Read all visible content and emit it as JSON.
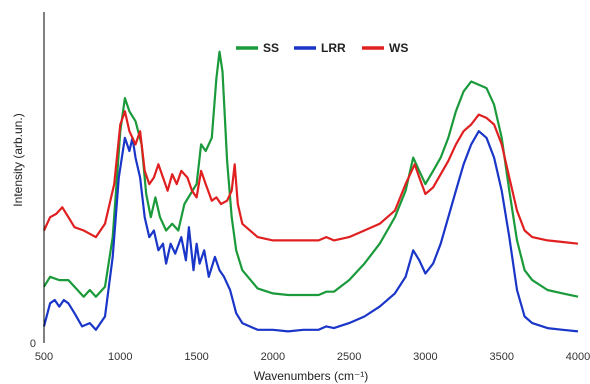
{
  "chart_data": {
    "type": "line",
    "title": "",
    "xlabel": "Wavenumbers (cm⁻¹)",
    "ylabel": "Intensity (arb.un.)",
    "xlim": [
      500,
      4000
    ],
    "ylim": [
      0,
      1
    ],
    "x_ticks": [
      "500",
      "1000",
      "1500",
      "2000",
      "2500",
      "3000",
      "3500",
      "4000"
    ],
    "y_ticks": [
      "0"
    ],
    "grid": false,
    "legend_position": "top-center",
    "series": [
      {
        "name": "SS",
        "color": "#1a9a3a",
        "points": [
          [
            500,
            0.17
          ],
          [
            540,
            0.2
          ],
          [
            600,
            0.19
          ],
          [
            660,
            0.19
          ],
          [
            700,
            0.17
          ],
          [
            760,
            0.14
          ],
          [
            800,
            0.16
          ],
          [
            840,
            0.14
          ],
          [
            900,
            0.17
          ],
          [
            950,
            0.32
          ],
          [
            1000,
            0.64
          ],
          [
            1030,
            0.74
          ],
          [
            1060,
            0.7
          ],
          [
            1100,
            0.67
          ],
          [
            1140,
            0.6
          ],
          [
            1170,
            0.45
          ],
          [
            1200,
            0.38
          ],
          [
            1230,
            0.44
          ],
          [
            1260,
            0.38
          ],
          [
            1300,
            0.34
          ],
          [
            1340,
            0.36
          ],
          [
            1380,
            0.34
          ],
          [
            1420,
            0.42
          ],
          [
            1460,
            0.45
          ],
          [
            1500,
            0.48
          ],
          [
            1530,
            0.6
          ],
          [
            1560,
            0.58
          ],
          [
            1600,
            0.62
          ],
          [
            1630,
            0.8
          ],
          [
            1650,
            0.88
          ],
          [
            1670,
            0.82
          ],
          [
            1700,
            0.55
          ],
          [
            1730,
            0.38
          ],
          [
            1760,
            0.28
          ],
          [
            1800,
            0.22
          ],
          [
            1900,
            0.165
          ],
          [
            2000,
            0.15
          ],
          [
            2100,
            0.145
          ],
          [
            2200,
            0.145
          ],
          [
            2300,
            0.145
          ],
          [
            2350,
            0.155
          ],
          [
            2400,
            0.155
          ],
          [
            2500,
            0.19
          ],
          [
            2600,
            0.24
          ],
          [
            2700,
            0.3
          ],
          [
            2800,
            0.38
          ],
          [
            2870,
            0.46
          ],
          [
            2920,
            0.56
          ],
          [
            2960,
            0.52
          ],
          [
            3000,
            0.48
          ],
          [
            3050,
            0.52
          ],
          [
            3100,
            0.56
          ],
          [
            3150,
            0.62
          ],
          [
            3200,
            0.7
          ],
          [
            3250,
            0.76
          ],
          [
            3300,
            0.79
          ],
          [
            3350,
            0.78
          ],
          [
            3400,
            0.77
          ],
          [
            3450,
            0.72
          ],
          [
            3500,
            0.62
          ],
          [
            3550,
            0.46
          ],
          [
            3600,
            0.31
          ],
          [
            3650,
            0.22
          ],
          [
            3700,
            0.19
          ],
          [
            3800,
            0.16
          ],
          [
            3900,
            0.15
          ],
          [
            4000,
            0.14
          ]
        ]
      },
      {
        "name": "LRR",
        "color": "#1a36c8",
        "points": [
          [
            500,
            0.05
          ],
          [
            540,
            0.12
          ],
          [
            570,
            0.13
          ],
          [
            600,
            0.11
          ],
          [
            630,
            0.13
          ],
          [
            660,
            0.12
          ],
          [
            700,
            0.09
          ],
          [
            750,
            0.05
          ],
          [
            800,
            0.06
          ],
          [
            840,
            0.04
          ],
          [
            900,
            0.08
          ],
          [
            950,
            0.26
          ],
          [
            990,
            0.5
          ],
          [
            1030,
            0.62
          ],
          [
            1060,
            0.58
          ],
          [
            1080,
            0.62
          ],
          [
            1100,
            0.56
          ],
          [
            1130,
            0.5
          ],
          [
            1160,
            0.38
          ],
          [
            1190,
            0.32
          ],
          [
            1220,
            0.34
          ],
          [
            1250,
            0.28
          ],
          [
            1280,
            0.3
          ],
          [
            1300,
            0.24
          ],
          [
            1330,
            0.3
          ],
          [
            1360,
            0.27
          ],
          [
            1400,
            0.32
          ],
          [
            1430,
            0.25
          ],
          [
            1450,
            0.35
          ],
          [
            1480,
            0.22
          ],
          [
            1500,
            0.3
          ],
          [
            1520,
            0.24
          ],
          [
            1550,
            0.28
          ],
          [
            1580,
            0.2
          ],
          [
            1620,
            0.26
          ],
          [
            1650,
            0.22
          ],
          [
            1680,
            0.2
          ],
          [
            1720,
            0.16
          ],
          [
            1760,
            0.09
          ],
          [
            1800,
            0.06
          ],
          [
            1900,
            0.04
          ],
          [
            2000,
            0.04
          ],
          [
            2100,
            0.035
          ],
          [
            2200,
            0.04
          ],
          [
            2300,
            0.04
          ],
          [
            2350,
            0.05
          ],
          [
            2400,
            0.045
          ],
          [
            2500,
            0.06
          ],
          [
            2600,
            0.08
          ],
          [
            2700,
            0.11
          ],
          [
            2800,
            0.15
          ],
          [
            2870,
            0.2
          ],
          [
            2920,
            0.28
          ],
          [
            2960,
            0.25
          ],
          [
            3000,
            0.21
          ],
          [
            3050,
            0.24
          ],
          [
            3100,
            0.3
          ],
          [
            3150,
            0.38
          ],
          [
            3200,
            0.46
          ],
          [
            3250,
            0.54
          ],
          [
            3300,
            0.6
          ],
          [
            3350,
            0.64
          ],
          [
            3400,
            0.62
          ],
          [
            3450,
            0.56
          ],
          [
            3500,
            0.46
          ],
          [
            3550,
            0.32
          ],
          [
            3600,
            0.16
          ],
          [
            3650,
            0.08
          ],
          [
            3700,
            0.06
          ],
          [
            3800,
            0.045
          ],
          [
            3900,
            0.04
          ],
          [
            4000,
            0.035
          ]
        ]
      },
      {
        "name": "WS",
        "color": "#e02020",
        "points": [
          [
            500,
            0.34
          ],
          [
            540,
            0.38
          ],
          [
            580,
            0.39
          ],
          [
            620,
            0.41
          ],
          [
            660,
            0.38
          ],
          [
            700,
            0.35
          ],
          [
            760,
            0.34
          ],
          [
            800,
            0.33
          ],
          [
            840,
            0.32
          ],
          [
            900,
            0.36
          ],
          [
            960,
            0.48
          ],
          [
            1000,
            0.66
          ],
          [
            1030,
            0.7
          ],
          [
            1060,
            0.64
          ],
          [
            1100,
            0.6
          ],
          [
            1130,
            0.64
          ],
          [
            1160,
            0.52
          ],
          [
            1190,
            0.48
          ],
          [
            1220,
            0.5
          ],
          [
            1250,
            0.54
          ],
          [
            1280,
            0.5
          ],
          [
            1310,
            0.46
          ],
          [
            1340,
            0.51
          ],
          [
            1370,
            0.48
          ],
          [
            1400,
            0.52
          ],
          [
            1440,
            0.5
          ],
          [
            1470,
            0.46
          ],
          [
            1500,
            0.44
          ],
          [
            1530,
            0.52
          ],
          [
            1560,
            0.48
          ],
          [
            1600,
            0.43
          ],
          [
            1630,
            0.44
          ],
          [
            1660,
            0.42
          ],
          [
            1700,
            0.43
          ],
          [
            1730,
            0.46
          ],
          [
            1750,
            0.54
          ],
          [
            1770,
            0.42
          ],
          [
            1800,
            0.36
          ],
          [
            1900,
            0.32
          ],
          [
            2000,
            0.31
          ],
          [
            2100,
            0.31
          ],
          [
            2200,
            0.31
          ],
          [
            2300,
            0.31
          ],
          [
            2350,
            0.32
          ],
          [
            2400,
            0.31
          ],
          [
            2500,
            0.32
          ],
          [
            2600,
            0.34
          ],
          [
            2700,
            0.36
          ],
          [
            2800,
            0.4
          ],
          [
            2870,
            0.48
          ],
          [
            2930,
            0.54
          ],
          [
            2960,
            0.5
          ],
          [
            3000,
            0.45
          ],
          [
            3050,
            0.47
          ],
          [
            3100,
            0.51
          ],
          [
            3150,
            0.55
          ],
          [
            3200,
            0.6
          ],
          [
            3250,
            0.64
          ],
          [
            3300,
            0.66
          ],
          [
            3350,
            0.69
          ],
          [
            3400,
            0.68
          ],
          [
            3450,
            0.66
          ],
          [
            3500,
            0.6
          ],
          [
            3550,
            0.5
          ],
          [
            3600,
            0.4
          ],
          [
            3650,
            0.34
          ],
          [
            3700,
            0.32
          ],
          [
            3800,
            0.31
          ],
          [
            3900,
            0.305
          ],
          [
            4000,
            0.3
          ]
        ]
      }
    ]
  }
}
